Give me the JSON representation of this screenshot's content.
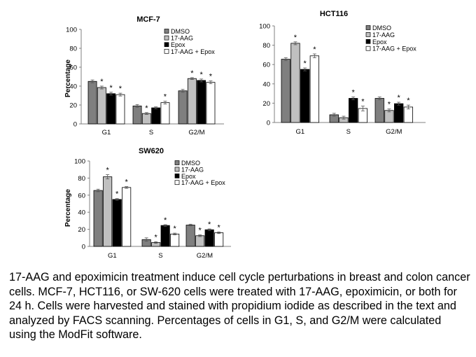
{
  "chart_data": [
    {
      "type": "bar",
      "title": "MCF-7",
      "ylabel": "Percentage",
      "ylim": [
        0,
        100
      ],
      "yticks": [
        "0",
        "20",
        "40",
        "60",
        "80",
        "100"
      ],
      "categories": [
        "G1",
        "S",
        "G2/M"
      ],
      "legend_position": "top-right",
      "series": [
        {
          "name": "DMSO",
          "values": [
            45,
            19,
            35
          ],
          "errors": [
            1.5,
            1.5,
            1.5
          ],
          "significant": [
            false,
            false,
            false
          ]
        },
        {
          "name": "17-AAG",
          "values": [
            38.5,
            11,
            48
          ],
          "errors": [
            1.5,
            1.0,
            1.0
          ],
          "significant": [
            true,
            true,
            true
          ]
        },
        {
          "name": "Epox",
          "values": [
            32,
            17,
            46
          ],
          "errors": [
            1.5,
            1.0,
            1.5
          ],
          "significant": [
            true,
            false,
            true
          ]
        },
        {
          "name": "17-AAG + Epox",
          "values": [
            31,
            22.5,
            44
          ],
          "errors": [
            1.5,
            1.5,
            1.5
          ],
          "significant": [
            true,
            true,
            true
          ]
        }
      ]
    },
    {
      "type": "bar",
      "title": "HCT116",
      "ylabel": "",
      "ylim": [
        0,
        100
      ],
      "yticks": [
        "0",
        "20",
        "40",
        "60",
        "80",
        "100"
      ],
      "categories": [
        "G1",
        "S",
        "G2/M"
      ],
      "legend_position": "top-right",
      "series": [
        {
          "name": "DMSO",
          "values": [
            65.5,
            8,
            25
          ],
          "errors": [
            1.5,
            1.5,
            1.5
          ],
          "significant": [
            false,
            false,
            false
          ]
        },
        {
          "name": "17-AAG",
          "values": [
            82,
            5,
            12.5
          ],
          "errors": [
            1.5,
            1.5,
            1.5
          ],
          "significant": [
            true,
            false,
            true
          ]
        },
        {
          "name": "Epox",
          "values": [
            55,
            25,
            19.5
          ],
          "errors": [
            1.5,
            1.5,
            1.5
          ],
          "significant": [
            true,
            true,
            true
          ]
        },
        {
          "name": "17-AAG + Epox",
          "values": [
            69,
            14.5,
            16
          ],
          "errors": [
            2.0,
            2.5,
            2.0
          ],
          "significant": [
            true,
            true,
            true
          ]
        }
      ]
    },
    {
      "type": "bar",
      "title": "SW620",
      "ylabel": "Percentage",
      "ylim": [
        0,
        100
      ],
      "yticks": [
        "0",
        "20",
        "40",
        "60",
        "80",
        "100"
      ],
      "categories": [
        "G1",
        "S",
        "G2/M"
      ],
      "legend_position": "top-right",
      "series": [
        {
          "name": "DMSO",
          "values": [
            65.5,
            8,
            25
          ],
          "errors": [
            1.5,
            2.0,
            1.0
          ],
          "significant": [
            false,
            false,
            false
          ]
        },
        {
          "name": "17-AAG",
          "values": [
            81.5,
            4.5,
            12.5
          ],
          "errors": [
            2.5,
            1.0,
            1.0
          ],
          "significant": [
            true,
            true,
            true
          ]
        },
        {
          "name": "Epox",
          "values": [
            55,
            24.5,
            19.5
          ],
          "errors": [
            1.0,
            1.0,
            1.0
          ],
          "significant": [
            true,
            true,
            true
          ]
        },
        {
          "name": "17-AAG + Epox",
          "values": [
            69,
            14.5,
            16
          ],
          "errors": [
            1.0,
            1.0,
            1.0
          ],
          "significant": [
            true,
            true,
            true
          ]
        }
      ]
    }
  ],
  "colors": {
    "DMSO": "#7f7f7f",
    "17-AAG": "#c0c0c0",
    "Epox": "#000000",
    "17-AAG + Epox": "#ffffff",
    "bar_outline": "#000000",
    "significance_mark": "*"
  },
  "caption": "17-AAG and epoximicin treatment induce cell cycle perturbations in breast and colon cancer cells. MCF-7, HCT116, or SW-620 cells were treated with 17-AAG, epoximicin, or both for 24 h. Cells were harvested and stained with propidium iodide as described in the text and analyzed by FACS scanning. Percentages of cells in G1, S, and G2/M were calculated using the ModFit software."
}
